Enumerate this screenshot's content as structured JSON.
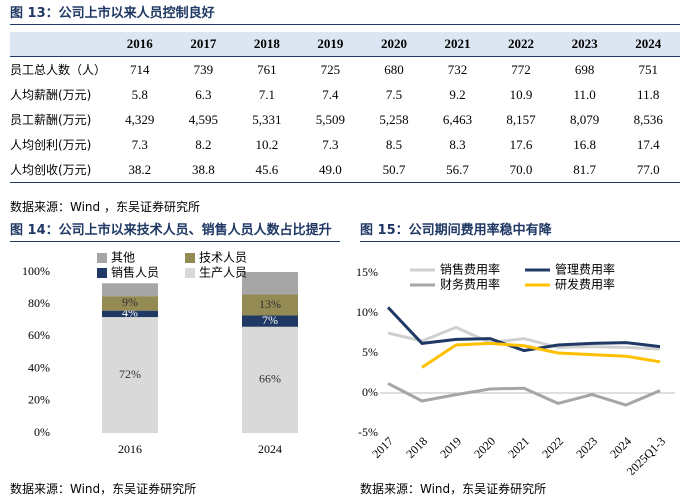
{
  "table": {
    "title": "图 13：公司上市以来人员控制良好",
    "columns": [
      "2016",
      "2017",
      "2018",
      "2019",
      "2020",
      "2021",
      "2022",
      "2023",
      "2024"
    ],
    "rows": [
      {
        "label": "员工总人数（人）",
        "values": [
          "714",
          "739",
          "761",
          "725",
          "680",
          "732",
          "772",
          "698",
          "751"
        ]
      },
      {
        "label": "人均薪酬(万元)",
        "values": [
          "5.8",
          "6.3",
          "7.1",
          "7.4",
          "7.5",
          "9.2",
          "10.9",
          "11.0",
          "11.8"
        ]
      },
      {
        "label": "员工薪酬(万元)",
        "values": [
          "4,329",
          "4,595",
          "5,331",
          "5,509",
          "5,258",
          "6,463",
          "8,157",
          "8,079",
          "8,536"
        ]
      },
      {
        "label": "人均创利(万元)",
        "values": [
          "7.3",
          "8.2",
          "10.2",
          "7.3",
          "8.5",
          "8.3",
          "17.6",
          "16.8",
          "17.4"
        ]
      },
      {
        "label": "人均创收(万元)",
        "values": [
          "38.2",
          "38.8",
          "45.6",
          "49.0",
          "50.7",
          "56.7",
          "70.0",
          "81.7",
          "77.0"
        ]
      }
    ],
    "source": "数据来源：Wind ，东吴证券研究所"
  },
  "chart_data": [
    {
      "type": "stacked_bar",
      "title": "图 14：公司上市以来技术人员、销售人员人数占比提升",
      "categories": [
        "2016",
        "2024"
      ],
      "series": [
        {
          "name": "其他",
          "color": "#a6a6a6",
          "values": [
            8,
            14
          ]
        },
        {
          "name": "技术人员",
          "color": "#948a54",
          "values": [
            9,
            13
          ],
          "value_labels": [
            "9%",
            "13%"
          ]
        },
        {
          "name": "销售人员",
          "color": "#1f3864",
          "values": [
            4,
            7
          ],
          "value_labels": [
            "4%",
            "7%"
          ]
        },
        {
          "name": "生产人员",
          "color": "#d9d9d9",
          "values": [
            72,
            66
          ],
          "value_labels": [
            "72%",
            "66%"
          ]
        }
      ],
      "ylim": [
        0,
        100
      ],
      "yticks": [
        {
          "value": 0,
          "label": "0%"
        },
        {
          "value": 20,
          "label": "20%"
        },
        {
          "value": 40,
          "label": "40%"
        },
        {
          "value": 60,
          "label": "60%"
        },
        {
          "value": 80,
          "label": "80%"
        },
        {
          "value": 100,
          "label": "100%"
        }
      ],
      "source": "数据来源：Wind，东吴证券研究所"
    },
    {
      "type": "line",
      "title": "图 15：公司期间费用率稳中有降",
      "categories": [
        "2017",
        "2018",
        "2019",
        "2020",
        "2021",
        "2022",
        "2023",
        "2024",
        "2025Q1-3"
      ],
      "series": [
        {
          "name": "销售费用率",
          "color": "#d0d0d0",
          "values": [
            7.5,
            6.5,
            8.2,
            6.3,
            6.8,
            5.7,
            5.8,
            5.7,
            5.5
          ]
        },
        {
          "name": "管理费用率",
          "color": "#1f3864",
          "values": [
            10.7,
            6.2,
            6.7,
            6.8,
            5.3,
            6.0,
            6.2,
            6.3,
            5.8
          ]
        },
        {
          "name": "财务费用率",
          "color": "#a6a6a6",
          "values": [
            1.2,
            -1.0,
            -0.2,
            0.5,
            0.6,
            -1.3,
            -0.2,
            -1.5,
            0.3
          ]
        },
        {
          "name": "研发费用率",
          "color": "#ffc000",
          "values": [
            null,
            3.2,
            6.0,
            6.2,
            5.9,
            5.0,
            4.8,
            4.6,
            3.9
          ]
        }
      ],
      "ylim": [
        -5,
        15
      ],
      "yticks": [
        {
          "value": -5,
          "label": "-5%"
        },
        {
          "value": 0,
          "label": "0%"
        },
        {
          "value": 5,
          "label": "5%"
        },
        {
          "value": 10,
          "label": "10%"
        },
        {
          "value": 15,
          "label": "15%"
        }
      ],
      "source": "数据来源：Wind，东吴证券研究所"
    }
  ]
}
